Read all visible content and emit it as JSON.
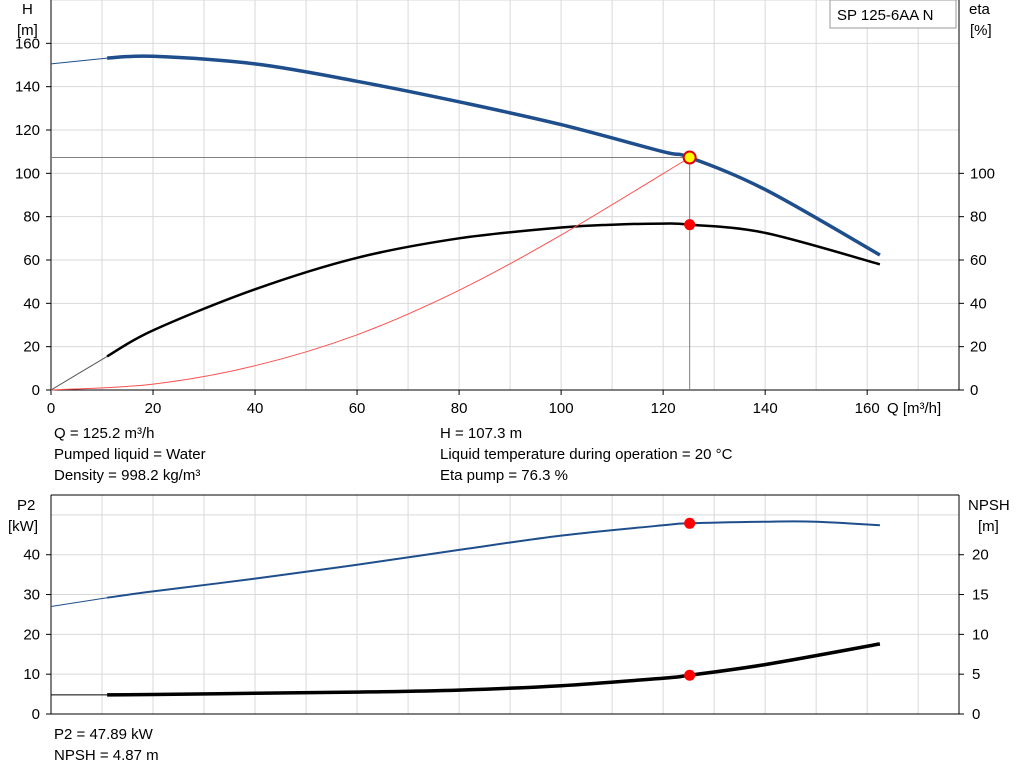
{
  "title": "SP 125-6AA N",
  "top_chart": {
    "h_axis": {
      "label": "H",
      "unit": "[m]",
      "ticks": [
        0,
        20,
        40,
        60,
        80,
        100,
        120,
        140,
        160
      ]
    },
    "eta_axis": {
      "label": "eta",
      "unit": "[%]",
      "ticks": [
        0,
        20,
        40,
        60,
        80,
        100
      ]
    },
    "q_axis": {
      "label": "Q [m³/h]",
      "ticks": [
        0,
        20,
        40,
        60,
        80,
        100,
        120,
        140,
        160
      ]
    }
  },
  "bottom_chart": {
    "p2_axis": {
      "label": "P2",
      "unit": "[kW]",
      "ticks": [
        0,
        10,
        20,
        30,
        40
      ]
    },
    "npsh_axis": {
      "label": "NPSH",
      "unit": "[m]",
      "ticks": [
        0,
        5,
        10,
        15,
        20
      ]
    }
  },
  "info_top": {
    "q": "Q = 125.2 m³/h",
    "liquid": "Pumped liquid = Water",
    "density": "Density = 998.2 kg/m³",
    "h": "H = 107.3 m",
    "temp": "Liquid temperature during operation = 20 °C",
    "eta": "Eta pump = 76.3 %"
  },
  "info_bottom": {
    "p2": "P2 = 47.89 kW",
    "npsh": "NPSH = 4.87 m"
  },
  "chart_data": [
    {
      "type": "line",
      "x_range": [
        0,
        178
      ],
      "y_range_left": [
        0,
        180
      ],
      "y_range_right": [
        0,
        180
      ],
      "grid": true,
      "series": [
        {
          "axis": "left",
          "color": "#1f4e8c",
          "x": [
            0,
            11,
            20,
            40,
            60,
            80,
            100,
            120,
            125.2,
            140,
            162.5
          ],
          "y": [
            150.5,
            153.2,
            154.0,
            150.5,
            142.5,
            133.0,
            122.5,
            110.0,
            107.3,
            92.5,
            62.3
          ]
        },
        {
          "axis": "right",
          "color": "#000000",
          "x": [
            0,
            11,
            20,
            40,
            60,
            80,
            100,
            110,
            120,
            125.2,
            140,
            162.5
          ],
          "y": [
            0,
            15.5,
            27.5,
            46.5,
            61.0,
            70.0,
            75.0,
            76.3,
            76.8,
            76.3,
            72.5,
            58.0
          ]
        },
        {
          "axis": "left",
          "color": "#ff5050",
          "x": [
            0,
            20,
            40,
            60,
            80,
            100,
            125.2
          ],
          "y": [
            0,
            2.7,
            11.2,
            25.5,
            46.0,
            71.5,
            107.3
          ]
        }
      ],
      "duty_point": {
        "q": 125.2,
        "h": 107.3,
        "eta": 76.3
      }
    },
    {
      "type": "line",
      "x_range": [
        0,
        178
      ],
      "y_range_left": [
        0,
        55
      ],
      "y_range_right": [
        0,
        27.5
      ],
      "grid": true,
      "series": [
        {
          "axis": "left",
          "color": "#1f4e8c",
          "x": [
            0,
            11,
            20,
            40,
            60,
            80,
            100,
            120,
            125.2,
            140,
            150,
            162.5
          ],
          "y": [
            27.0,
            29.2,
            30.8,
            34.0,
            37.5,
            41.2,
            44.8,
            47.4,
            47.89,
            48.3,
            48.3,
            47.4
          ]
        },
        {
          "axis": "right",
          "color": "#000000",
          "x": [
            0,
            11,
            20,
            40,
            60,
            80,
            100,
            120,
            125.2,
            140,
            162.5
          ],
          "y": [
            2.4,
            2.4,
            2.45,
            2.6,
            2.75,
            3.0,
            3.55,
            4.5,
            4.87,
            6.2,
            8.8
          ]
        }
      ],
      "duty_point": {
        "q": 125.2,
        "p2": 47.89,
        "npsh": 4.87
      }
    }
  ]
}
